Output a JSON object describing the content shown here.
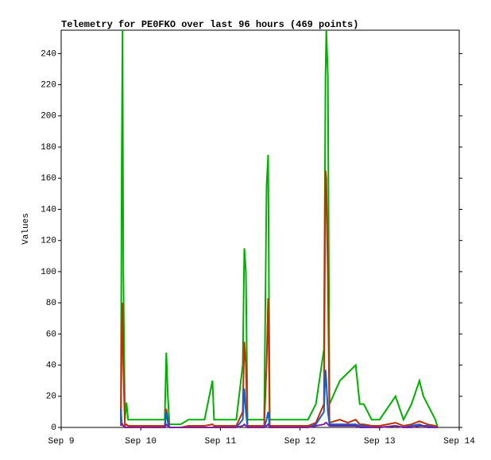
{
  "chart_data": {
    "type": "line",
    "title": "Telemetry for PE0FKO over last 96 hours (469 points)",
    "y_label": "Values",
    "x": [
      0.75,
      0.76,
      0.77,
      0.78,
      0.8,
      0.82,
      0.84,
      0.9,
      1.0,
      1.1,
      1.2,
      1.3,
      1.32,
      1.34,
      1.36,
      1.5,
      1.6,
      1.8,
      1.9,
      1.92,
      2.0,
      2.2,
      2.28,
      2.3,
      2.32,
      2.34,
      2.4,
      2.55,
      2.58,
      2.6,
      2.62,
      2.7,
      3.0,
      3.1,
      3.2,
      3.3,
      3.32,
      3.33,
      3.35,
      3.37,
      3.5,
      3.6,
      3.7,
      3.75,
      3.8,
      3.9,
      4.0,
      4.2,
      4.3,
      4.4,
      4.5,
      4.55,
      4.6,
      4.7,
      4.73
    ],
    "series": [
      {
        "color": "#00b000",
        "values": [
          5,
          170,
          255,
          100,
          5,
          16,
          5,
          5,
          5,
          5,
          5,
          5,
          48,
          20,
          2,
          2,
          5,
          5,
          30,
          5,
          5,
          5,
          40,
          115,
          100,
          5,
          5,
          5,
          155,
          175,
          5,
          5,
          5,
          5,
          15,
          50,
          225,
          255,
          225,
          15,
          30,
          35,
          40,
          15,
          15,
          5,
          5,
          20,
          5,
          15,
          30,
          20,
          15,
          5,
          0
        ]
      },
      {
        "color": "#c03000",
        "values": [
          1,
          60,
          80,
          40,
          1,
          2,
          1,
          1,
          1,
          1,
          1,
          1,
          12,
          5,
          0,
          0,
          1,
          1,
          2,
          1,
          1,
          1,
          10,
          55,
          40,
          1,
          1,
          1,
          40,
          83,
          1,
          1,
          1,
          1,
          3,
          15,
          165,
          160,
          95,
          3,
          5,
          3,
          5,
          2,
          2,
          1,
          1,
          3,
          1,
          2,
          4,
          3,
          2,
          1,
          0
        ]
      },
      {
        "color": "#1060d0",
        "values": [
          12,
          3,
          2,
          1,
          0,
          0,
          0,
          0,
          0,
          0,
          0,
          0,
          10,
          3,
          0,
          0,
          0,
          0,
          0,
          0,
          0,
          0,
          5,
          25,
          10,
          0,
          0,
          0,
          5,
          10,
          0,
          0,
          0,
          0,
          2,
          10,
          37,
          30,
          10,
          2,
          2,
          2,
          2,
          1,
          1,
          0,
          0,
          1,
          0,
          1,
          2,
          1,
          1,
          0,
          0
        ]
      },
      {
        "color": "#8020a0",
        "values": [
          1,
          2,
          2,
          1,
          0,
          0,
          0,
          0,
          0,
          0,
          0,
          0,
          2,
          1,
          0,
          0,
          0,
          0,
          0,
          0,
          0,
          0,
          1,
          2,
          1,
          0,
          0,
          0,
          1,
          2,
          0,
          0,
          0,
          0,
          1,
          2,
          3,
          3,
          2,
          1,
          1,
          1,
          1,
          0,
          0,
          0,
          0,
          1,
          0,
          0,
          1,
          1,
          0,
          0,
          0
        ]
      }
    ],
    "xlim": [
      0,
      5
    ],
    "xticks": [
      {
        "value": 0,
        "label": "Sep 9"
      },
      {
        "value": 1,
        "label": "Sep 10"
      },
      {
        "value": 2,
        "label": "Sep 11"
      },
      {
        "value": 3,
        "label": "Sep 12"
      },
      {
        "value": 4,
        "label": "Sep 13"
      },
      {
        "value": 5,
        "label": "Sep 14"
      }
    ],
    "ylim": [
      0,
      255
    ],
    "yticks": [
      0,
      20,
      40,
      60,
      80,
      100,
      120,
      140,
      160,
      180,
      200,
      220,
      240
    ],
    "grid": false
  }
}
